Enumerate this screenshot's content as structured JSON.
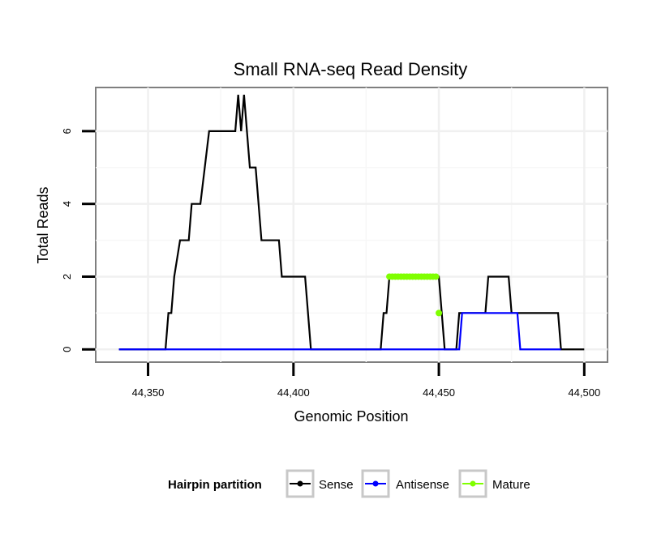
{
  "chart_data": {
    "type": "line",
    "title": "Small RNA-seq Read Density",
    "xlabel": "Genomic Position",
    "ylabel": "Total Reads",
    "xlim": [
      44332,
      44508
    ],
    "ylim": [
      -0.35,
      7.2
    ],
    "x_ticks": [
      44350,
      44400,
      44450,
      44500
    ],
    "x_tick_labels": [
      "44,350",
      "44,400",
      "44,450",
      "44,500"
    ],
    "y_ticks": [
      0,
      2,
      4,
      6
    ],
    "y_tick_labels": [
      "0",
      "2",
      "4",
      "6"
    ],
    "grid": true,
    "legend": {
      "title": "Hairpin partition",
      "position": "bottom"
    },
    "series": [
      {
        "name": "Sense",
        "color": "#000000",
        "x": [
          44340,
          44356,
          44357,
          44358,
          44359,
          44361,
          44362,
          44364,
          44365,
          44367,
          44368,
          44371,
          44372,
          44380,
          44381,
          44382,
          44383,
          44384,
          44385,
          44386,
          44387,
          44389,
          44390,
          44395,
          44396,
          44404,
          44406,
          44430,
          44431,
          44432,
          44433,
          44449,
          44450,
          44451,
          44452,
          44456,
          44457,
          44458,
          44459,
          44466,
          44467,
          44474,
          44475,
          44491,
          44492,
          44500
        ],
        "y": [
          0,
          0,
          1,
          1,
          2,
          3,
          3,
          3,
          4,
          4,
          4,
          6,
          6,
          6,
          7,
          6,
          7,
          6,
          5,
          5,
          5,
          3,
          3,
          3,
          2,
          2,
          0,
          0,
          1,
          1,
          2,
          2,
          2,
          1,
          0,
          0,
          1,
          1,
          1,
          1,
          2,
          2,
          1,
          1,
          0,
          0
        ]
      },
      {
        "name": "Antisense",
        "color": "#0000ff",
        "x": [
          44340,
          44457,
          44458,
          44477,
          44478,
          44492
        ],
        "y": [
          0,
          0,
          1,
          1,
          0,
          0
        ]
      },
      {
        "name": "Mature",
        "color": "#7fff00",
        "x": [
          44433,
          44434,
          44435,
          44436,
          44437,
          44438,
          44439,
          44440,
          44441,
          44442,
          44443,
          44444,
          44445,
          44446,
          44447,
          44448,
          44449,
          44450
        ],
        "y": [
          2,
          2,
          2,
          2,
          2,
          2,
          2,
          2,
          2,
          2,
          2,
          2,
          2,
          2,
          2,
          2,
          2,
          1
        ],
        "segments": [
          [
            0,
            16
          ]
        ]
      }
    ]
  }
}
